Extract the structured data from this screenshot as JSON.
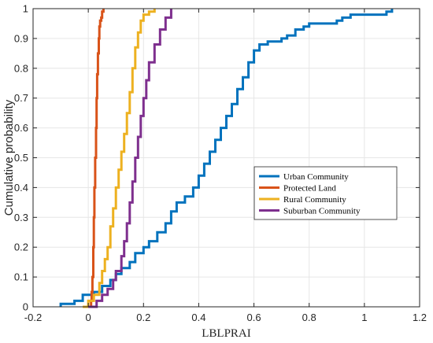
{
  "chart_data": {
    "type": "line",
    "xlabel": "LBLPRAI",
    "ylabel": "Cumulative probability",
    "xlim": [
      -0.2,
      1.2
    ],
    "ylim": [
      0,
      1
    ],
    "xticks": [
      "-0.2",
      "0",
      "0.2",
      "0.4",
      "0.6",
      "0.8",
      "1",
      "1.2"
    ],
    "yticks": [
      "0",
      "0.1",
      "0.2",
      "0.3",
      "0.4",
      "0.5",
      "0.6",
      "0.7",
      "0.8",
      "0.9",
      "1"
    ],
    "grid": true,
    "legend_position": "middle-right",
    "series": [
      {
        "name": "Urban Community",
        "color": "#0072BD",
        "x": [
          -0.1,
          -0.1,
          -0.05,
          -0.05,
          -0.02,
          -0.02,
          0.02,
          0.05,
          0.08,
          0.1,
          0.12,
          0.15,
          0.17,
          0.2,
          0.22,
          0.25,
          0.28,
          0.3,
          0.32,
          0.35,
          0.38,
          0.4,
          0.42,
          0.44,
          0.46,
          0.48,
          0.5,
          0.52,
          0.54,
          0.56,
          0.58,
          0.6,
          0.62,
          0.65,
          0.7,
          0.72,
          0.75,
          0.78,
          0.8,
          0.85,
          0.9,
          0.92,
          0.95,
          1.0,
          1.05,
          1.08,
          1.1
        ],
        "y": [
          0.0,
          0.01,
          0.01,
          0.02,
          0.02,
          0.04,
          0.05,
          0.07,
          0.09,
          0.11,
          0.13,
          0.15,
          0.18,
          0.2,
          0.22,
          0.25,
          0.28,
          0.32,
          0.35,
          0.37,
          0.4,
          0.44,
          0.48,
          0.52,
          0.56,
          0.6,
          0.64,
          0.68,
          0.73,
          0.77,
          0.82,
          0.86,
          0.88,
          0.89,
          0.9,
          0.91,
          0.93,
          0.94,
          0.95,
          0.95,
          0.96,
          0.97,
          0.98,
          0.98,
          0.98,
          0.99,
          1.0
        ]
      },
      {
        "name": "Protected Land",
        "color": "#D95319",
        "x": [
          0.0,
          0.01,
          0.012,
          0.015,
          0.018,
          0.02,
          0.022,
          0.025,
          0.028,
          0.03,
          0.032,
          0.035,
          0.038,
          0.04,
          0.043,
          0.047,
          0.05,
          0.055
        ],
        "y": [
          0.0,
          0.02,
          0.05,
          0.1,
          0.2,
          0.3,
          0.4,
          0.5,
          0.6,
          0.7,
          0.78,
          0.85,
          0.9,
          0.94,
          0.96,
          0.97,
          0.99,
          1.0
        ]
      },
      {
        "name": "Rural Community",
        "color": "#EDB120",
        "x": [
          -0.02,
          0.0,
          0.02,
          0.04,
          0.05,
          0.06,
          0.07,
          0.08,
          0.09,
          0.1,
          0.11,
          0.12,
          0.13,
          0.14,
          0.15,
          0.16,
          0.17,
          0.18,
          0.19,
          0.2,
          0.22,
          0.24
        ],
        "y": [
          0.0,
          0.02,
          0.04,
          0.08,
          0.12,
          0.16,
          0.2,
          0.27,
          0.33,
          0.4,
          0.46,
          0.52,
          0.58,
          0.65,
          0.72,
          0.8,
          0.87,
          0.92,
          0.96,
          0.98,
          0.99,
          1.0
        ]
      },
      {
        "name": "Suburban Community",
        "color": "#7E2F8E",
        "x": [
          0.0,
          0.03,
          0.05,
          0.07,
          0.09,
          0.1,
          0.12,
          0.13,
          0.14,
          0.15,
          0.16,
          0.17,
          0.18,
          0.19,
          0.2,
          0.21,
          0.22,
          0.24,
          0.26,
          0.28,
          0.3
        ],
        "y": [
          0.0,
          0.02,
          0.04,
          0.06,
          0.09,
          0.12,
          0.17,
          0.22,
          0.28,
          0.35,
          0.42,
          0.5,
          0.57,
          0.64,
          0.7,
          0.76,
          0.82,
          0.88,
          0.93,
          0.97,
          1.0
        ]
      }
    ]
  }
}
